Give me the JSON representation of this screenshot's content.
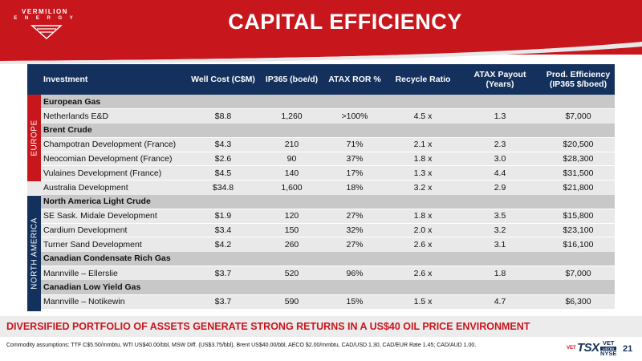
{
  "brand": {
    "name": "VERMILION",
    "sub": "E N E R G Y"
  },
  "title": "CAPITAL EFFICIENCY",
  "table": {
    "headers": {
      "investment": "Investment",
      "well_cost": "Well Cost (C$M)",
      "ip365": "IP365 (boe/d)",
      "atax_ror": "ATAX ROR %",
      "recycle": "Recycle Ratio",
      "payout_line1": "ATAX Payout",
      "payout_line2": "(Years)",
      "prod_line1": "Prod. Efficiency",
      "prod_line2": "(IP365 $/boed)"
    },
    "regions": {
      "europe": "EUROPE",
      "north_america": "NORTH AMERICA"
    },
    "groups": {
      "european_gas": "European Gas",
      "brent_crude": "Brent Crude",
      "na_light_crude": "North America Light Crude",
      "cdn_condensate": "Canadian Condensate Rich Gas",
      "cdn_low_yield": "Canadian Low Yield Gas"
    },
    "rows": [
      {
        "name": "Netherlands E&D",
        "cost": "$8.8",
        "ip": "1,260",
        "ror": ">100%",
        "recycle": "4.5 x",
        "payout": "1.3",
        "prod": "$7,000"
      },
      {
        "name": "Champotran Development (France)",
        "cost": "$4.3",
        "ip": "210",
        "ror": "71%",
        "recycle": "2.1 x",
        "payout": "2.3",
        "prod": "$20,500"
      },
      {
        "name": "Neocomian Development (France)",
        "cost": "$2.6",
        "ip": "90",
        "ror": "37%",
        "recycle": "1.8 x",
        "payout": "3.0",
        "prod": "$28,300"
      },
      {
        "name": "Vulaines Development (France)",
        "cost": "$4.5",
        "ip": "140",
        "ror": "17%",
        "recycle": "1.3 x",
        "payout": "4.4",
        "prod": "$31,500"
      },
      {
        "name": "Australia Development",
        "cost": "$34.8",
        "ip": "1,600",
        "ror": "18%",
        "recycle": "3.2 x",
        "payout": "2.9",
        "prod": "$21,800"
      },
      {
        "name": "SE Sask. Midale Development",
        "cost": "$1.9",
        "ip": "120",
        "ror": "27%",
        "recycle": "1.8 x",
        "payout": "3.5",
        "prod": "$15,800"
      },
      {
        "name": "Cardium Development",
        "cost": "$3.4",
        "ip": "150",
        "ror": "32%",
        "recycle": "2.0 x",
        "payout": "3.2",
        "prod": "$23,100"
      },
      {
        "name": "Turner Sand Development",
        "cost": "$4.2",
        "ip": "260",
        "ror": "27%",
        "recycle": "2.6 x",
        "payout": "3.1",
        "prod": "$16,100"
      },
      {
        "name": "Mannville – Ellerslie",
        "cost": "$3.7",
        "ip": "520",
        "ror": "96%",
        "recycle": "2.6 x",
        "payout": "1.8",
        "prod": "$7,000"
      },
      {
        "name": "Mannville – Notikewin",
        "cost": "$3.7",
        "ip": "590",
        "ror": "15%",
        "recycle": "1.5 x",
        "payout": "4.7",
        "prod": "$6,300"
      }
    ]
  },
  "banner": "DIVERSIFIED PORTFOLIO OF ASSETS GENERATE STRONG RETURNS IN A US$40 OIL PRICE ENVIRONMENT",
  "footnote": "Commodity assumptions: TTF C$5.50/mmbtu, WTI US$40.00/bbl, MSW Diff. (US$3.75/bbl), Brent US$40.00/bbl, AECO $2.00/mmbtu, CAD/USD 1.30, CAD/EUR Rate 1.45; CAD/AUD 1.00.",
  "exchange": {
    "vet": "VET",
    "tsx": "TSX",
    "vet_right": "VET",
    "nyse": "NYSE",
    "listed": "LISTED"
  },
  "page_number": "21",
  "colors": {
    "brand_red": "#c8161d",
    "navy": "#13315c",
    "row_gray": "#e9e9e9",
    "group_gray": "#c8c8c8"
  }
}
